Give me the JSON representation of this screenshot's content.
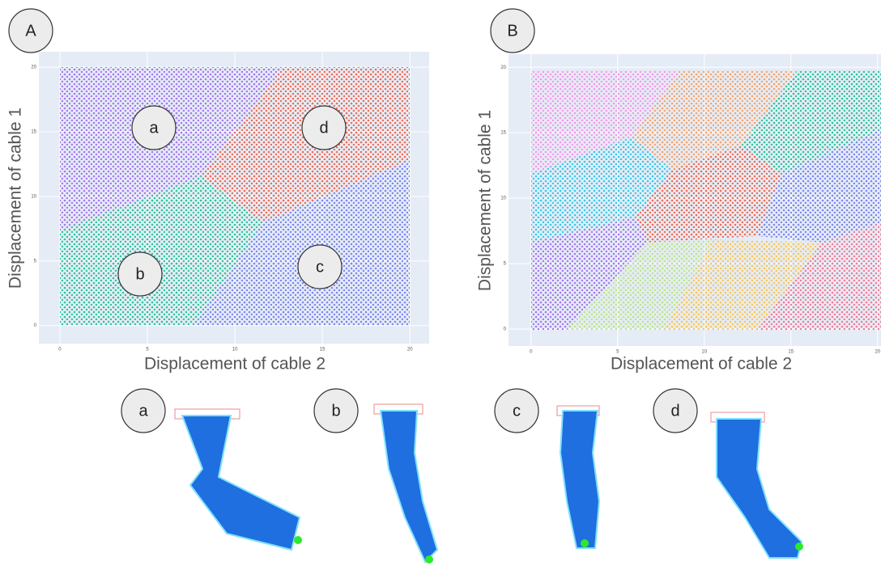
{
  "chart_data": [
    {
      "type": "scatter",
      "panel_label": "A",
      "xlabel": "Displacement of cable 2",
      "ylabel": "Displacement of cable 1",
      "xlim": [
        -1.2,
        21.1
      ],
      "ylim": [
        -1.4,
        21.2
      ],
      "xticks": [
        0,
        5,
        10,
        15,
        20
      ],
      "yticks": [
        0,
        5,
        10,
        15,
        20
      ],
      "grid": true,
      "annotations": [
        "a",
        "b",
        "c",
        "d"
      ]
    },
    {
      "type": "scatter",
      "panel_label": "B",
      "xlabel": "Displacement of cable 2",
      "ylabel": "Displacement of cable 1",
      "xlim": [
        -1.3,
        20.2
      ],
      "ylim": [
        -1.3,
        21.0
      ],
      "xticks": [
        0,
        5,
        10,
        15,
        20
      ],
      "yticks": [
        0,
        5,
        10,
        15,
        20
      ],
      "grid": true
    }
  ],
  "robot_labels": [
    "a",
    "b",
    "c",
    "d"
  ]
}
